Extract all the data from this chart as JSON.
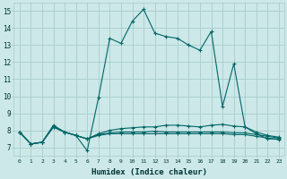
{
  "title": "",
  "xlabel": "Humidex (Indice chaleur)",
  "xlim": [
    -0.5,
    23.5
  ],
  "ylim": [
    6.5,
    15.5
  ],
  "xticks": [
    0,
    1,
    2,
    3,
    4,
    5,
    6,
    7,
    8,
    9,
    10,
    11,
    12,
    13,
    14,
    15,
    16,
    17,
    18,
    19,
    20,
    21,
    22,
    23
  ],
  "yticks": [
    7,
    8,
    9,
    10,
    11,
    12,
    13,
    14,
    15
  ],
  "background_color": "#cce8e8",
  "grid_color": "#aacccc",
  "line_color": "#006666",
  "lines": [
    {
      "x": [
        0,
        1,
        2,
        3,
        4,
        5,
        6,
        7,
        8,
        9,
        10,
        11,
        12,
        13,
        14,
        15,
        16,
        17,
        18,
        19,
        20,
        21,
        22,
        23
      ],
      "y": [
        7.9,
        7.2,
        7.3,
        8.3,
        7.9,
        7.7,
        6.8,
        9.9,
        13.4,
        13.1,
        14.4,
        15.1,
        13.7,
        13.5,
        13.4,
        13.0,
        12.7,
        13.8,
        9.4,
        11.9,
        8.2,
        7.8,
        7.5,
        7.5
      ]
    },
    {
      "x": [
        0,
        1,
        2,
        3,
        4,
        5,
        6,
        7,
        8,
        9,
        10,
        11,
        12,
        13,
        14,
        15,
        16,
        17,
        18,
        19,
        20,
        21,
        22,
        23
      ],
      "y": [
        7.9,
        7.2,
        7.3,
        8.2,
        7.9,
        7.7,
        7.5,
        7.8,
        8.0,
        8.1,
        8.15,
        8.2,
        8.2,
        8.3,
        8.3,
        8.25,
        8.2,
        8.3,
        8.35,
        8.25,
        8.2,
        7.9,
        7.7,
        7.6
      ]
    },
    {
      "x": [
        0,
        1,
        2,
        3,
        4,
        5,
        6,
        7,
        8,
        9,
        10,
        11,
        12,
        13,
        14,
        15,
        16,
        17,
        18,
        19,
        20,
        21,
        22,
        23
      ],
      "y": [
        7.9,
        7.2,
        7.3,
        8.2,
        7.9,
        7.7,
        7.5,
        7.75,
        7.85,
        7.9,
        7.9,
        7.9,
        7.95,
        7.9,
        7.9,
        7.9,
        7.9,
        7.9,
        7.9,
        7.85,
        7.85,
        7.75,
        7.65,
        7.55
      ]
    },
    {
      "x": [
        0,
        1,
        2,
        3,
        4,
        5,
        6,
        7,
        8,
        9,
        10,
        11,
        12,
        13,
        14,
        15,
        16,
        17,
        18,
        19,
        20,
        21,
        22,
        23
      ],
      "y": [
        7.9,
        7.2,
        7.3,
        8.2,
        7.9,
        7.7,
        7.5,
        7.7,
        7.8,
        7.8,
        7.8,
        7.8,
        7.8,
        7.8,
        7.8,
        7.8,
        7.8,
        7.8,
        7.8,
        7.75,
        7.75,
        7.65,
        7.55,
        7.45
      ]
    }
  ]
}
